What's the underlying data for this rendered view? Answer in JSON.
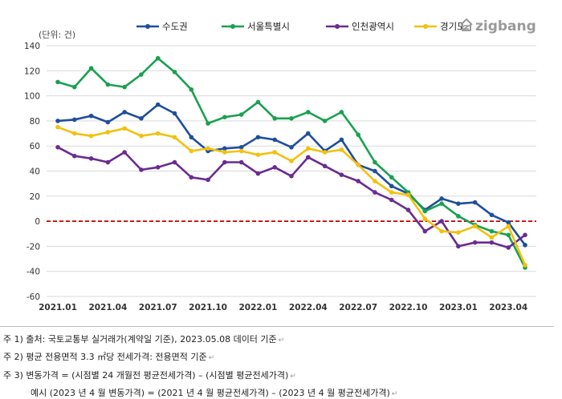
{
  "logo": {
    "text": "zigbang",
    "icon": "zigbang-logo-icon"
  },
  "chart_data": {
    "type": "line",
    "unit_label": "(단위: 건)",
    "ylim": [
      -60,
      140
    ],
    "yticks": [
      -60,
      -40,
      -20,
      0,
      20,
      40,
      60,
      80,
      100,
      120,
      140
    ],
    "x": [
      "2021.01",
      "2021.02",
      "2021.03",
      "2021.04",
      "2021.05",
      "2021.06",
      "2021.07",
      "2021.08",
      "2021.09",
      "2021.10",
      "2021.11",
      "2021.12",
      "2022.01",
      "2022.02",
      "2022.03",
      "2022.04",
      "2022.05",
      "2022.06",
      "2022.07",
      "2022.08",
      "2022.09",
      "2022.10",
      "2022.11",
      "2022.12",
      "2023.01",
      "2023.02",
      "2023.03",
      "2023.04",
      "2023.05"
    ],
    "xtick_labels": [
      "2021.01",
      "2021.04",
      "2021.07",
      "2021.10",
      "2022.01",
      "2022.04",
      "2022.07",
      "2022.10",
      "2023.01",
      "2023.04"
    ],
    "grid": true,
    "legend_position": "top",
    "zero_line": {
      "value": 0,
      "color": "#c00000",
      "style": "dashed"
    },
    "series": [
      {
        "name": "수도권",
        "color": "#1f4e9c",
        "values": [
          80,
          81,
          84,
          79,
          87,
          82,
          93,
          86,
          67,
          56,
          58,
          59,
          67,
          65,
          59,
          70,
          56,
          65,
          45,
          40,
          28,
          22,
          9,
          18,
          14,
          15,
          5,
          -1,
          -19
        ]
      },
      {
        "name": "서울특별시",
        "color": "#1aa050",
        "values": [
          111,
          107,
          122,
          109,
          107,
          117,
          130,
          119,
          105,
          78,
          83,
          85,
          95,
          82,
          82,
          87,
          80,
          87,
          69,
          47,
          35,
          23,
          8,
          14,
          4,
          -3,
          -8,
          -11,
          -37
        ]
      },
      {
        "name": "인천광역시",
        "color": "#6a2c91",
        "values": [
          59,
          52,
          50,
          47,
          55,
          41,
          43,
          47,
          35,
          33,
          47,
          47,
          38,
          43,
          36,
          51,
          44,
          37,
          32,
          23,
          17,
          9,
          -8,
          0,
          -20,
          -17,
          -17,
          -21,
          -11
        ]
      },
      {
        "name": "경기도",
        "color": "#f2c10c",
        "values": [
          75,
          70,
          68,
          71,
          74,
          68,
          70,
          67,
          56,
          58,
          55,
          56,
          53,
          55,
          48,
          58,
          55,
          57,
          45,
          32,
          23,
          21,
          2,
          -8,
          -9,
          -4,
          -13,
          -4,
          -35
        ]
      }
    ]
  },
  "notes": [
    {
      "text": "주 1) 출처: 국토교통부 실거래가(계약일 기준), 2023.05.08  데이터 기준"
    },
    {
      "text": "주 2) 평균 전용면적 3.3 ㎡당 전세가격: 전용면적 기준"
    },
    {
      "text": "주 3) 변동가격  = (시점별 24 개월전 평균전세가격) – (시점별 평균전세가격)"
    },
    {
      "text": "예시 (2023 년 4 월 변동가격) = (2021 년 4 월 평균전세가격) – (2023 년 4 월 평균전세가격)"
    }
  ]
}
